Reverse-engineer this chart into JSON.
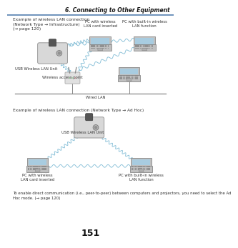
{
  "bg_color": "#ffffff",
  "page_title": "6. Connecting to Other Equipment",
  "page_number": "151",
  "top_line_color": "#5580b0",
  "title_color": "#1a1a1a",
  "section1_label": "Example of wireless LAN connection\n(Network Type → Infrastructure)\n(→ page 120)",
  "section2_label": "Example of wireless LAN connection (Network Type → Ad Hoc)",
  "footer_text": "To enable direct communication (i.e., peer-to-peer) between computers and projectors, you need to select the Ad\nHoc mode. (→ page 120)",
  "label_pc_wireless": "PC with wireless\nLAN card inserted",
  "label_pc_builtin": "PC with built-in wireless\nLAN function",
  "label_usb1": "USB Wireless LAN Unit",
  "label_usb2": "USB Wireless LAN Unit",
  "label_access_point": "Wireless access point",
  "label_wired_lan": "Wired LAN",
  "wireless_color": "#88c0d8",
  "wired_line_color": "#888888",
  "text_color": "#333333",
  "link_color": "#4a7fb5",
  "projector_body": "#d8d8d8",
  "projector_edge": "#999999",
  "projector_top": "#555555",
  "laptop_body": "#c0c0c0",
  "laptop_edge": "#888888",
  "laptop_screen": "#a8cce0",
  "laptop_keyboard": "#b0b0b0",
  "router_body": "#e0e0e0",
  "router_edge": "#aaaaaa"
}
